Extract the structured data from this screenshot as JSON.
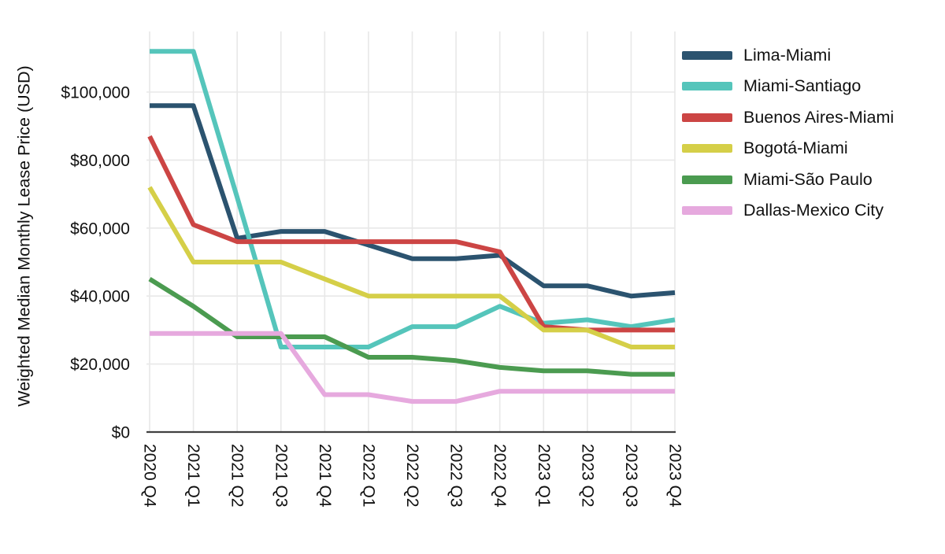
{
  "chart_data": {
    "type": "line",
    "title": "",
    "xlabel": "",
    "ylabel": "Weighted Median Monthly Lease Price (USD)",
    "grid": true,
    "legend_position": "right",
    "categories": [
      "2020 Q4",
      "2021 Q1",
      "2021 Q2",
      "2021 Q3",
      "2021 Q4",
      "2022 Q1",
      "2022 Q2",
      "2022 Q3",
      "2022 Q4",
      "2023 Q1",
      "2023 Q2",
      "2023 Q3",
      "2023 Q4"
    ],
    "y_axis": {
      "min": 0,
      "max": 118000,
      "tick_values": [
        0,
        20000,
        40000,
        60000,
        80000,
        100000
      ],
      "tick_labels": [
        "$0",
        "$20,000",
        "$40,000",
        "$60,000",
        "$80,000",
        "$100,000"
      ]
    },
    "series": [
      {
        "name": "Lima-Miami",
        "color": "#2b536f",
        "values": [
          96000,
          96000,
          57000,
          59000,
          59000,
          55000,
          51000,
          51000,
          52000,
          43000,
          43000,
          40000,
          41000
        ]
      },
      {
        "name": "Miami-Santiago",
        "color": "#55c5bb",
        "values": [
          112000,
          112000,
          69000,
          25000,
          25000,
          25000,
          31000,
          31000,
          37000,
          32000,
          33000,
          31000,
          33000
        ]
      },
      {
        "name": "Buenos Aires-Miami",
        "color": "#cc4544",
        "values": [
          87000,
          61000,
          56000,
          56000,
          56000,
          56000,
          56000,
          56000,
          53000,
          31000,
          30000,
          30000,
          30000
        ]
      },
      {
        "name": "Bogotá-Miami",
        "color": "#d5cf48",
        "values": [
          72000,
          50000,
          50000,
          50000,
          45000,
          40000,
          40000,
          40000,
          40000,
          30000,
          30000,
          25000,
          25000
        ]
      },
      {
        "name": "Miami-São Paulo",
        "color": "#4b9b50",
        "values": [
          45000,
          37000,
          28000,
          28000,
          28000,
          22000,
          22000,
          21000,
          19000,
          18000,
          18000,
          17000,
          17000
        ]
      },
      {
        "name": "Dallas-Mexico City",
        "color": "#e6a9de",
        "values": [
          29000,
          29000,
          29000,
          29000,
          11000,
          11000,
          9000,
          9000,
          12000,
          12000,
          12000,
          12000,
          12000
        ]
      }
    ],
    "style": {
      "gridline_color": "#e8e8e8",
      "axis_line_color": "#404040",
      "text_color": "#111111",
      "line_width": 6
    }
  }
}
